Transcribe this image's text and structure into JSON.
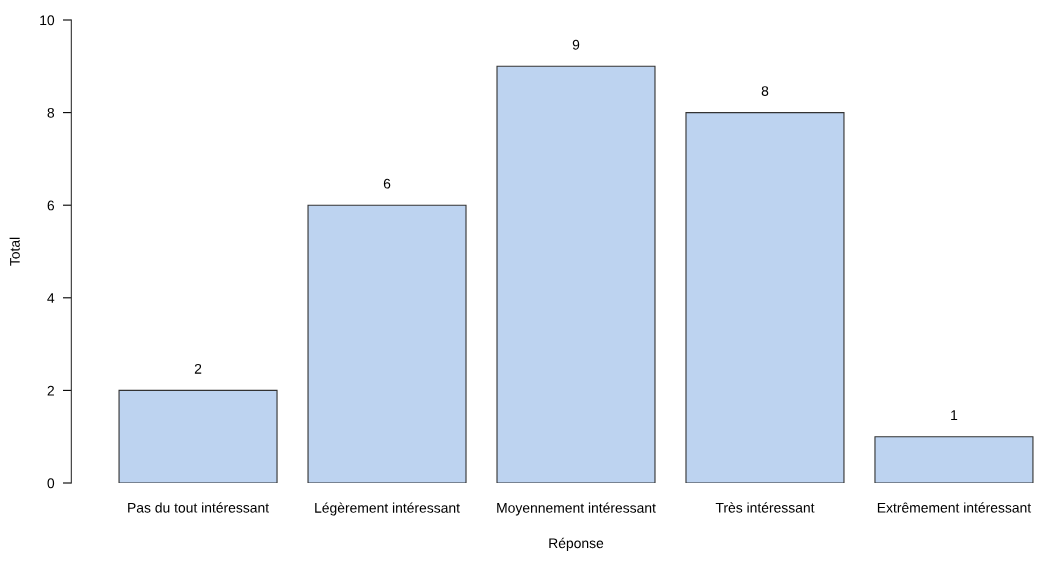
{
  "chart_data": {
    "type": "bar",
    "xlabel": "Réponse",
    "ylabel": "Total",
    "categories": [
      "Pas du tout intéressant",
      "Légèrement intéressant",
      "Moyennement intéressant",
      "Très intéressant",
      "Extrêmement intéressant"
    ],
    "values": [
      2,
      6,
      9,
      8,
      1
    ],
    "color": "#bdd3f0",
    "data_labels": true,
    "ylim": [
      0,
      10
    ],
    "yticks": [
      0,
      2,
      4,
      6,
      8,
      10
    ],
    "grid": false,
    "legend": false
  }
}
